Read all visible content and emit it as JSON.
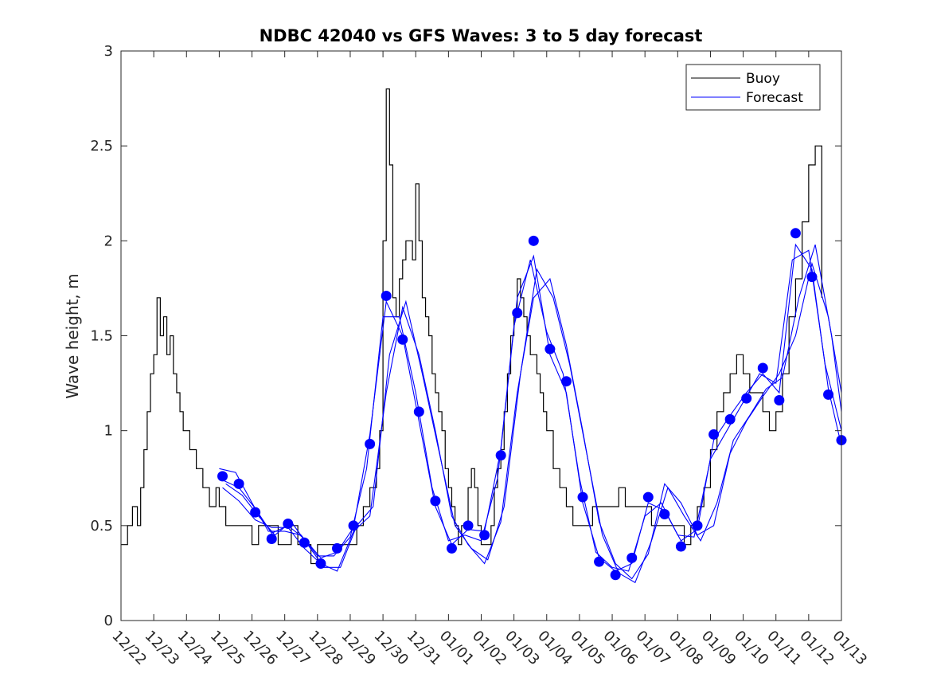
{
  "chart_data": {
    "type": "line",
    "title": "NDBC 42040 vs GFS Waves: 3 to 5 day forecast",
    "xlabel": "",
    "ylabel": "Wave height, m",
    "xlim": [
      0,
      22
    ],
    "ylim": [
      0,
      3
    ],
    "yticks": [
      0,
      0.5,
      1,
      1.5,
      2,
      2.5,
      3
    ],
    "ytick_labels": [
      "0",
      "0.5",
      "1",
      "1.5",
      "2",
      "2.5",
      "3"
    ],
    "xtick_labels": [
      "12/22",
      "12/23",
      "12/24",
      "12/25",
      "12/26",
      "12/27",
      "12/28",
      "12/29",
      "12/30",
      "12/31",
      "01/01",
      "01/02",
      "01/03",
      "01/04",
      "01/05",
      "01/06",
      "01/07",
      "01/08",
      "01/09",
      "01/10",
      "01/11",
      "01/12",
      "01/13"
    ],
    "legend": {
      "location": "top-right",
      "entries": [
        "Buoy",
        "Forecast"
      ]
    },
    "colors": {
      "buoy": "#000000",
      "forecast": "#0000ff",
      "markers": "#0000ff",
      "axes": "#262626"
    },
    "series": [
      {
        "name": "Buoy",
        "x": [
          0,
          0.2,
          0.35,
          0.5,
          0.6,
          0.7,
          0.8,
          0.9,
          1.0,
          1.1,
          1.2,
          1.3,
          1.4,
          1.5,
          1.6,
          1.7,
          1.8,
          1.9,
          2.0,
          2.1,
          2.2,
          2.3,
          2.4,
          2.5,
          2.6,
          2.7,
          2.8,
          2.9,
          3.0,
          3.2,
          3.4,
          3.6,
          3.8,
          4.0,
          4.2,
          4.4,
          4.6,
          4.8,
          5.0,
          5.2,
          5.4,
          5.6,
          5.8,
          6.0,
          6.2,
          6.4,
          6.6,
          6.8,
          7.0,
          7.2,
          7.4,
          7.6,
          7.8,
          7.9,
          8.0,
          8.1,
          8.2,
          8.3,
          8.4,
          8.5,
          8.6,
          8.7,
          8.8,
          8.9,
          9.0,
          9.1,
          9.2,
          9.3,
          9.4,
          9.5,
          9.6,
          9.7,
          9.8,
          9.9,
          10.0,
          10.1,
          10.2,
          10.3,
          10.4,
          10.5,
          10.6,
          10.7,
          10.8,
          10.9,
          11.0,
          11.1,
          11.2,
          11.3,
          11.4,
          11.5,
          11.6,
          11.7,
          11.8,
          11.9,
          12.0,
          12.1,
          12.2,
          12.3,
          12.4,
          12.5,
          12.6,
          12.7,
          12.8,
          12.9,
          13.0,
          13.2,
          13.4,
          13.6,
          13.8,
          14.0,
          14.2,
          14.4,
          14.6,
          14.8,
          15.0,
          15.2,
          15.4,
          15.6,
          15.8,
          16.0,
          16.2,
          16.4,
          16.6,
          16.8,
          17.0,
          17.2,
          17.4,
          17.6,
          17.8,
          18.0,
          18.2,
          18.4,
          18.6,
          18.8,
          19.0,
          19.2,
          19.4,
          19.6,
          19.8,
          20.0,
          20.2,
          20.4,
          20.6,
          20.8,
          21.0,
          21.2,
          21.4
        ],
        "values": [
          0.4,
          0.5,
          0.6,
          0.5,
          0.7,
          0.9,
          1.1,
          1.3,
          1.4,
          1.7,
          1.5,
          1.6,
          1.4,
          1.5,
          1.3,
          1.2,
          1.1,
          1.0,
          1.0,
          0.9,
          0.9,
          0.8,
          0.8,
          0.7,
          0.7,
          0.6,
          0.6,
          0.7,
          0.6,
          0.5,
          0.5,
          0.5,
          0.5,
          0.4,
          0.5,
          0.5,
          0.5,
          0.4,
          0.4,
          0.5,
          0.4,
          0.4,
          0.3,
          0.4,
          0.4,
          0.4,
          0.4,
          0.4,
          0.4,
          0.5,
          0.6,
          0.7,
          0.8,
          1.0,
          2.0,
          2.8,
          2.4,
          1.7,
          1.6,
          1.8,
          1.9,
          2.0,
          2.0,
          1.9,
          2.3,
          2.0,
          1.7,
          1.6,
          1.5,
          1.3,
          1.2,
          1.1,
          1.0,
          0.8,
          0.7,
          0.6,
          0.5,
          0.4,
          0.5,
          0.5,
          0.7,
          0.8,
          0.7,
          0.5,
          0.4,
          0.4,
          0.4,
          0.5,
          0.7,
          0.8,
          0.9,
          1.1,
          1.3,
          1.5,
          1.6,
          1.8,
          1.7,
          1.6,
          1.5,
          1.4,
          1.4,
          1.3,
          1.2,
          1.1,
          1.0,
          0.8,
          0.7,
          0.6,
          0.5,
          0.5,
          0.5,
          0.6,
          0.6,
          0.6,
          0.6,
          0.7,
          0.6,
          0.6,
          0.6,
          0.6,
          0.5,
          0.5,
          0.5,
          0.5,
          0.5,
          0.4,
          0.5,
          0.6,
          0.7,
          0.9,
          1.1,
          1.2,
          1.3,
          1.4,
          1.3,
          1.2,
          1.2,
          1.1,
          1.0,
          1.1,
          1.3,
          1.6,
          1.8,
          2.1,
          2.4,
          2.5,
          1.7
        ]
      },
      {
        "name": "Forecast",
        "x": [
          3.1,
          3.6,
          4.1,
          4.6,
          5.1,
          5.6,
          6.1,
          6.6,
          7.1,
          7.6,
          8.1,
          8.6,
          9.1,
          9.6,
          10.1,
          10.6,
          11.1,
          11.6,
          12.1,
          12.6,
          13.1,
          13.6,
          14.1,
          14.6,
          15.1,
          15.6,
          16.1,
          16.6,
          17.1,
          17.6,
          18.1,
          18.6,
          19.1,
          19.6,
          20.1,
          20.6,
          21.1,
          21.6,
          22.0
        ],
        "values": [
          0.76,
          0.72,
          0.57,
          0.43,
          0.51,
          0.41,
          0.3,
          0.38,
          0.5,
          0.93,
          1.71,
          1.48,
          1.1,
          0.63,
          0.38,
          0.5,
          0.45,
          0.87,
          1.62,
          2.0,
          1.43,
          1.26,
          0.65,
          0.31,
          0.24,
          0.33,
          0.65,
          0.56,
          0.39,
          0.5,
          0.98,
          1.06,
          1.17,
          1.33,
          1.16,
          2.04,
          1.81,
          1.19,
          0.95
        ]
      }
    ],
    "forecast_runs": [
      {
        "x": [
          3.1,
          3.6,
          4.1,
          4.6,
          5.1,
          5.6,
          6.1,
          6.6,
          7.1,
          7.6,
          8.1,
          8.6,
          9.1,
          9.6,
          10.1,
          10.6,
          11.1,
          11.6,
          12.1,
          12.6,
          13.1,
          13.6,
          14.1,
          14.6,
          15.1,
          15.6,
          16.1,
          16.6,
          17.1,
          17.6,
          18.1,
          18.6,
          19.1,
          19.6,
          20.1,
          20.6,
          21.1,
          21.6,
          22.0
        ],
        "values": [
          0.74,
          0.7,
          0.59,
          0.46,
          0.5,
          0.43,
          0.33,
          0.36,
          0.49,
          0.98,
          1.68,
          1.5,
          1.05,
          0.6,
          0.4,
          0.48,
          0.47,
          0.9,
          1.7,
          1.92,
          1.4,
          1.2,
          0.62,
          0.33,
          0.26,
          0.3,
          0.62,
          0.58,
          0.42,
          0.48,
          0.95,
          1.08,
          1.2,
          1.3,
          1.2,
          1.98,
          1.85,
          1.22,
          0.92
        ]
      },
      {
        "x": [
          3.0,
          3.5,
          4.0,
          4.5,
          5.0,
          5.5,
          6.0,
          6.5,
          7.0,
          7.5,
          8.0,
          8.5,
          9.0,
          9.5,
          10.0,
          10.5,
          11.0,
          11.5,
          12.0,
          12.5,
          13.0,
          13.5,
          14.0,
          14.5,
          15.0,
          15.5,
          16.0,
          16.5,
          17.0,
          17.5,
          18.0,
          18.5,
          19.0,
          19.5,
          20.0,
          20.5,
          21.0,
          21.5,
          22.0
        ],
        "values": [
          0.8,
          0.78,
          0.62,
          0.47,
          0.47,
          0.45,
          0.34,
          0.34,
          0.44,
          0.8,
          1.6,
          1.6,
          1.2,
          0.7,
          0.42,
          0.45,
          0.42,
          0.75,
          1.55,
          1.9,
          1.52,
          1.3,
          0.75,
          0.36,
          0.28,
          0.26,
          0.55,
          0.62,
          0.45,
          0.44,
          0.85,
          1.0,
          1.15,
          1.3,
          1.25,
          1.9,
          1.95,
          1.35,
          1.0
        ]
      },
      {
        "x": [
          3.2,
          3.7,
          4.2,
          4.7,
          5.2,
          5.7,
          6.2,
          6.7,
          7.2,
          7.7,
          8.2,
          8.7,
          9.2,
          9.7,
          10.2,
          10.7,
          11.2,
          11.7,
          12.2,
          12.7,
          13.2,
          13.7,
          14.2,
          14.7,
          15.2,
          15.7,
          16.2,
          16.7,
          17.2,
          17.7,
          18.2,
          18.7,
          19.2,
          19.7,
          20.2,
          20.7,
          21.2,
          21.7,
          22.0
        ],
        "values": [
          0.72,
          0.66,
          0.55,
          0.45,
          0.52,
          0.4,
          0.28,
          0.28,
          0.5,
          0.6,
          1.4,
          1.68,
          1.3,
          0.9,
          0.5,
          0.38,
          0.32,
          0.6,
          1.3,
          1.85,
          1.7,
          1.35,
          0.9,
          0.45,
          0.25,
          0.2,
          0.42,
          0.7,
          0.55,
          0.42,
          0.62,
          0.95,
          1.08,
          1.22,
          1.28,
          1.7,
          1.98,
          1.5,
          1.1
        ]
      },
      {
        "x": [
          3.1,
          3.6,
          4.1,
          4.6,
          5.1,
          5.6,
          6.1,
          6.6,
          7.1,
          7.6,
          8.1,
          8.6,
          9.1,
          9.6,
          10.1,
          10.6,
          11.1,
          11.6,
          12.1,
          12.6,
          13.1,
          13.6,
          14.1,
          14.6,
          15.1,
          15.6,
          16.1,
          16.6,
          17.1,
          17.6,
          18.1,
          18.6,
          19.1,
          19.6,
          20.1,
          20.6,
          21.1,
          21.6,
          22.0
        ],
        "values": [
          0.7,
          0.63,
          0.53,
          0.49,
          0.49,
          0.38,
          0.3,
          0.26,
          0.47,
          0.55,
          1.2,
          1.65,
          1.4,
          1.0,
          0.55,
          0.4,
          0.3,
          0.52,
          1.2,
          1.7,
          1.8,
          1.45,
          1.0,
          0.52,
          0.3,
          0.22,
          0.35,
          0.72,
          0.62,
          0.45,
          0.5,
          0.88,
          1.05,
          1.18,
          1.3,
          1.5,
          1.88,
          1.6,
          1.2
        ]
      }
    ]
  }
}
